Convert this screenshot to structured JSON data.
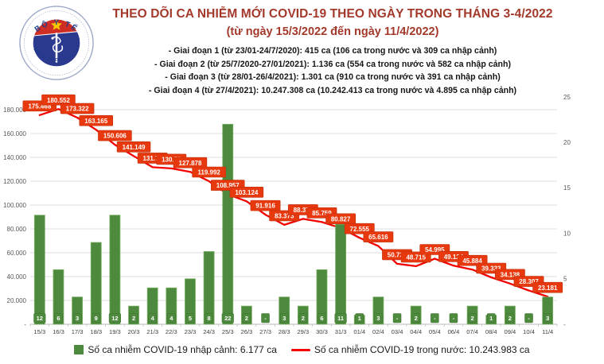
{
  "logo": {
    "top_text": "BỘ Y TẾ",
    "bottom_text": "MINISTRY OF HEALTH"
  },
  "header": {
    "title": "THEO DÕI CA NHIỄM MỚI COVID-19 THEO NGÀY TRONG THÁNG 3-4/2022",
    "subtitle": "(từ ngày 15/3/2022 đến ngày 11/4/2022)",
    "phases": [
      "- Giai đoạn 1 (từ 23/01-24/7/2020): 415 ca (106 ca trong nước và 309 ca nhập cảnh)",
      "- Giai đoạn 2 (từ 25/7/2020-27/01/2021): 1.136 ca (554 ca trong nước và 582 ca nhập cảnh)",
      "- Giai đoạn 3 (từ 28/01-26/4/2021): 1.301 ca (910 ca trong nước và 391 ca nhập cảnh)",
      "- Giai đoạn 4 (từ 27/4/2021): 10.247.308 ca (10.242.413 ca trong nước và 4.895 ca nhập cảnh)"
    ]
  },
  "colors": {
    "bar_fill": "#4e8a3e",
    "bar_edge": "#79ae62",
    "line_stroke": "#f40000",
    "line_label_bg": "#e8390e",
    "line_label_edge": "#c02f0a",
    "grid": "#dcdcdc",
    "axis_line": "#b8b8b8",
    "tick_text": "#595959"
  },
  "chart_data": {
    "type": "bar+line",
    "categories": [
      "15/3",
      "16/3",
      "17/3",
      "18/3",
      "19/3",
      "20/3",
      "21/3",
      "22/3",
      "23/3",
      "24/3",
      "25/3",
      "26/3",
      "27/3",
      "28/3",
      "29/3",
      "30/3",
      "31/3",
      "01/4",
      "02/4",
      "03/4",
      "04/4",
      "05/4",
      "06/4",
      "07/4",
      "08/4",
      "09/4",
      "10/4",
      "11/4"
    ],
    "series": [
      {
        "name": "Số ca nhiễm COVID-19 nhập cảnh",
        "type": "bar",
        "axis": "right",
        "values": [
          12,
          6,
          3,
          9,
          12,
          2,
          4,
          4,
          5,
          8,
          22,
          2,
          0,
          3,
          2,
          6,
          11,
          1,
          3,
          0,
          2,
          0,
          0,
          2,
          1,
          2,
          0,
          3
        ],
        "labels": [
          "12",
          "6",
          "3",
          "9",
          "12",
          "2",
          "4",
          "4",
          "5",
          "8",
          "22",
          "2",
          "-",
          "3",
          "2",
          "6",
          "11",
          "1",
          "3",
          "-",
          "2",
          "-",
          "-",
          "2",
          "1",
          "2",
          "-",
          "3"
        ]
      },
      {
        "name": "Số ca nhiễm COVID-19 trong nước",
        "type": "line",
        "axis": "left",
        "values": [
          175468,
          180552,
          173322,
          163165,
          150606,
          141149,
          131700,
          130730,
          127878,
          119992,
          108957,
          103124,
          91916,
          83373,
          88376,
          85759,
          80827,
          72555,
          65616,
          50730,
          48715,
          54995,
          49124,
          45884,
          39333,
          34138,
          28307,
          23181
        ],
        "labels": [
          "175.468",
          "180.552",
          "173.322",
          "163.165",
          "150.606",
          "141.149",
          "131.70",
          "130.73",
          "127.878",
          "119.992",
          "108.957",
          "103.124",
          "91.916",
          "83.373",
          "88.376",
          "85.759",
          "80.827",
          "72.555",
          "65.616",
          "50.730",
          "48.715",
          "54.995",
          "49.124",
          "45.884",
          "39.333",
          "34.138",
          "28.307",
          "23.181"
        ]
      }
    ],
    "left_axis": {
      "ticks": [
        "-",
        "20.000",
        "40.000",
        "60.000",
        "80.000",
        "100.000",
        "120.000",
        "140.000",
        "160.000",
        "180.000"
      ],
      "tick_step": 20000,
      "max": 180000
    },
    "right_axis": {
      "ticks": [
        "-",
        "5",
        "10",
        "15",
        "20",
        "25"
      ],
      "tick_step": 5,
      "max": 25
    },
    "grid": true,
    "legend_position": "bottom"
  },
  "legend": [
    {
      "swatch": "bar",
      "label": "Số ca nhiễm COVID-19 nhập cảnh: 6.177 ca"
    },
    {
      "swatch": "line",
      "label": "Số ca nhiễm COVID-19 trong nước: 10.243.983 ca"
    }
  ]
}
